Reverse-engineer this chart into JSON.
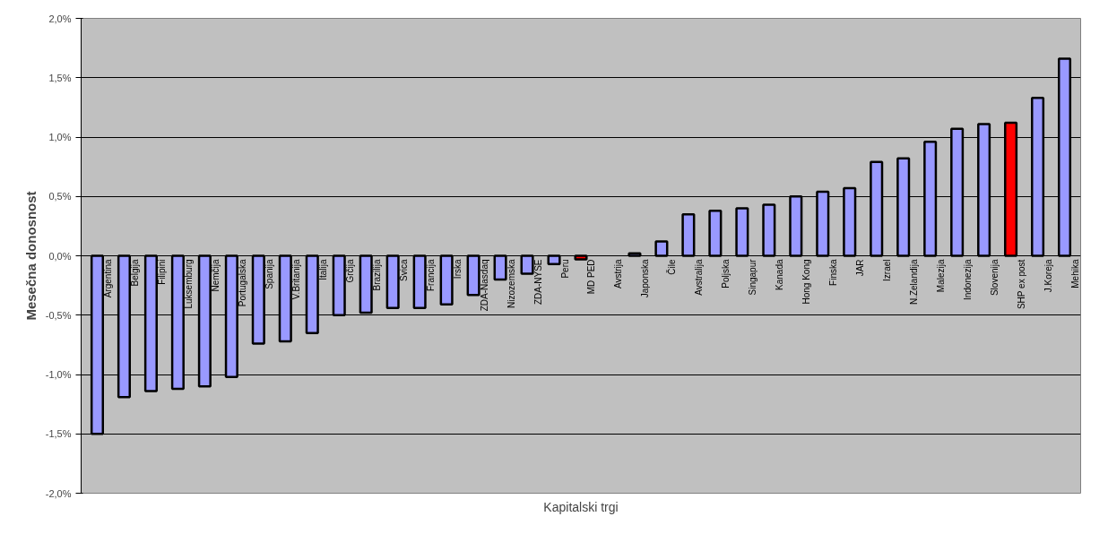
{
  "chart_data": {
    "type": "bar",
    "xlabel": "Kapitalski trgi",
    "ylabel": "Mesečna donosnost",
    "categories": [
      "Argentina",
      "Belgija",
      "Filipini",
      "Luksemburg",
      "Nemčija",
      "Portugalska",
      "Španija",
      "V.Britanija",
      "Italija",
      "Grčija",
      "Brazilija",
      "Švica",
      "Francija",
      "Irska",
      "ZDA-Nasdaq",
      "Nizozemska",
      "ZDA-NYSE",
      "Peru",
      "MD PED",
      "Avstrija",
      "Japonska",
      "Čile",
      "Avstralija",
      "Poljska",
      "Singapur",
      "Kanada",
      "Hong Kong",
      "Finska",
      "JAR",
      "Izrael",
      "N.Zelandija",
      "Malezija",
      "Indonezija",
      "Slovenija",
      "SHP ex post",
      "J.Koreja",
      "Mehika"
    ],
    "values": [
      -1.5,
      -1.19,
      -1.14,
      -1.12,
      -1.1,
      -1.02,
      -0.74,
      -0.72,
      -0.65,
      -0.5,
      -0.48,
      -0.44,
      -0.44,
      -0.41,
      -0.33,
      -0.2,
      -0.15,
      -0.07,
      -0.03,
      null,
      0.02,
      0.12,
      0.35,
      0.38,
      0.4,
      0.43,
      0.5,
      0.54,
      0.57,
      0.79,
      0.82,
      0.96,
      1.07,
      1.11,
      1.12,
      1.33,
      1.66
    ],
    "colors": [
      "#9999ff",
      "#9999ff",
      "#9999ff",
      "#9999ff",
      "#9999ff",
      "#9999ff",
      "#9999ff",
      "#9999ff",
      "#9999ff",
      "#9999ff",
      "#9999ff",
      "#9999ff",
      "#9999ff",
      "#9999ff",
      "#9999ff",
      "#9999ff",
      "#9999ff",
      "#9999ff",
      "#ff0000",
      "#9999ff",
      "#9999ff",
      "#9999ff",
      "#9999ff",
      "#9999ff",
      "#9999ff",
      "#9999ff",
      "#9999ff",
      "#9999ff",
      "#9999ff",
      "#9999ff",
      "#9999ff",
      "#9999ff",
      "#9999ff",
      "#9999ff",
      "#ff0000",
      "#9999ff",
      "#9999ff"
    ],
    "ylim": [
      -2.0,
      2.0
    ],
    "yticks": [
      {
        "value": -2.0,
        "label": "-2,0%"
      },
      {
        "value": -1.5,
        "label": "-1,5%"
      },
      {
        "value": -1.0,
        "label": "-1,0%"
      },
      {
        "value": -0.5,
        "label": "-0,5%"
      },
      {
        "value": 0.0,
        "label": "0,0%"
      },
      {
        "value": 0.5,
        "label": "0,5%"
      },
      {
        "value": 1.0,
        "label": "1,0%"
      },
      {
        "value": 1.5,
        "label": "1,5%"
      },
      {
        "value": 2.0,
        "label": "2,0%"
      }
    ],
    "grid": "y"
  }
}
